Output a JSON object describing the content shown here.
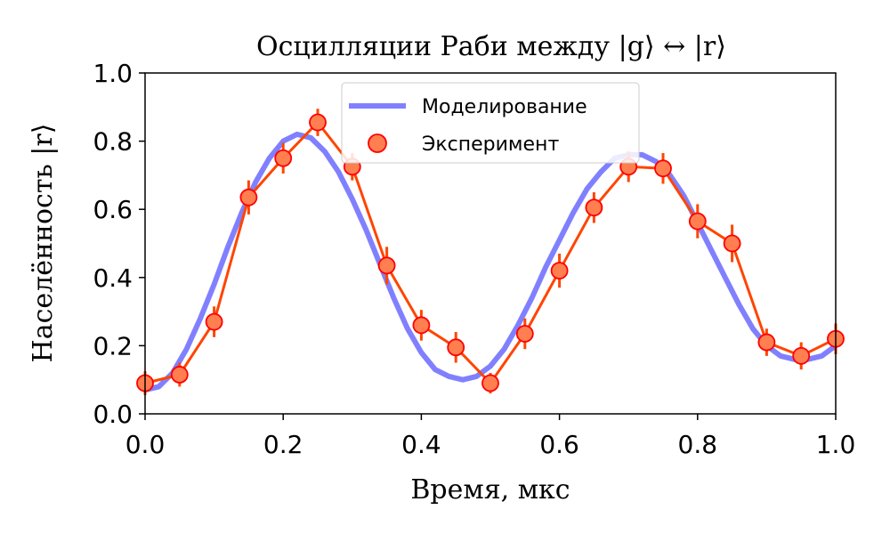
{
  "chart_data": {
    "type": "line",
    "title": "Осцилляции Раби между |g⟩ ↔ |r⟩",
    "xlabel": "Время, мкс",
    "ylabel": "Населённость |r⟩",
    "xlim": [
      0.0,
      1.0
    ],
    "ylim": [
      0.0,
      1.0
    ],
    "x_ticks": [
      "0.0",
      "0.2",
      "0.4",
      "0.6",
      "0.8",
      "1.0"
    ],
    "y_ticks": [
      "0.0",
      "0.2",
      "0.4",
      "0.6",
      "0.8",
      "1.0"
    ],
    "grid": false,
    "legend_position": "top-center",
    "colors": {
      "simulation": "#8080ff",
      "experiment_line": "#ff4500",
      "marker_fill": "#ff7f50",
      "marker_edge": "#ff0000"
    },
    "series": [
      {
        "name": "Моделирование",
        "kind": "line",
        "x": [
          0.0,
          0.02,
          0.04,
          0.06,
          0.08,
          0.1,
          0.12,
          0.14,
          0.16,
          0.18,
          0.2,
          0.22,
          0.24,
          0.26,
          0.28,
          0.3,
          0.32,
          0.34,
          0.36,
          0.38,
          0.4,
          0.42,
          0.44,
          0.46,
          0.48,
          0.5,
          0.52,
          0.54,
          0.56,
          0.58,
          0.6,
          0.62,
          0.64,
          0.66,
          0.68,
          0.7,
          0.72,
          0.74,
          0.76,
          0.78,
          0.8,
          0.82,
          0.84,
          0.86,
          0.88,
          0.9,
          0.92,
          0.94,
          0.96,
          0.98,
          1.0
        ],
        "y": [
          0.07,
          0.08,
          0.12,
          0.19,
          0.28,
          0.38,
          0.49,
          0.59,
          0.68,
          0.75,
          0.8,
          0.82,
          0.81,
          0.77,
          0.71,
          0.63,
          0.54,
          0.44,
          0.34,
          0.25,
          0.18,
          0.13,
          0.11,
          0.1,
          0.11,
          0.14,
          0.19,
          0.26,
          0.34,
          0.43,
          0.51,
          0.59,
          0.66,
          0.71,
          0.75,
          0.76,
          0.76,
          0.74,
          0.7,
          0.64,
          0.56,
          0.48,
          0.4,
          0.32,
          0.25,
          0.2,
          0.17,
          0.16,
          0.16,
          0.17,
          0.2
        ]
      },
      {
        "name": "Эксперимент",
        "kind": "errorbar",
        "x": [
          0.0,
          0.05,
          0.1,
          0.15,
          0.2,
          0.25,
          0.3,
          0.35,
          0.4,
          0.45,
          0.5,
          0.55,
          0.6,
          0.65,
          0.7,
          0.75,
          0.8,
          0.85,
          0.9,
          0.95,
          1.0
        ],
        "y": [
          0.09,
          0.115,
          0.27,
          0.635,
          0.75,
          0.855,
          0.725,
          0.435,
          0.26,
          0.195,
          0.09,
          0.235,
          0.42,
          0.605,
          0.725,
          0.72,
          0.565,
          0.5,
          0.21,
          0.17,
          0.22
        ],
        "yerr": [
          0.035,
          0.035,
          0.045,
          0.05,
          0.045,
          0.04,
          0.04,
          0.055,
          0.045,
          0.045,
          0.03,
          0.045,
          0.05,
          0.045,
          0.045,
          0.045,
          0.05,
          0.055,
          0.04,
          0.04,
          0.045
        ]
      }
    ]
  }
}
